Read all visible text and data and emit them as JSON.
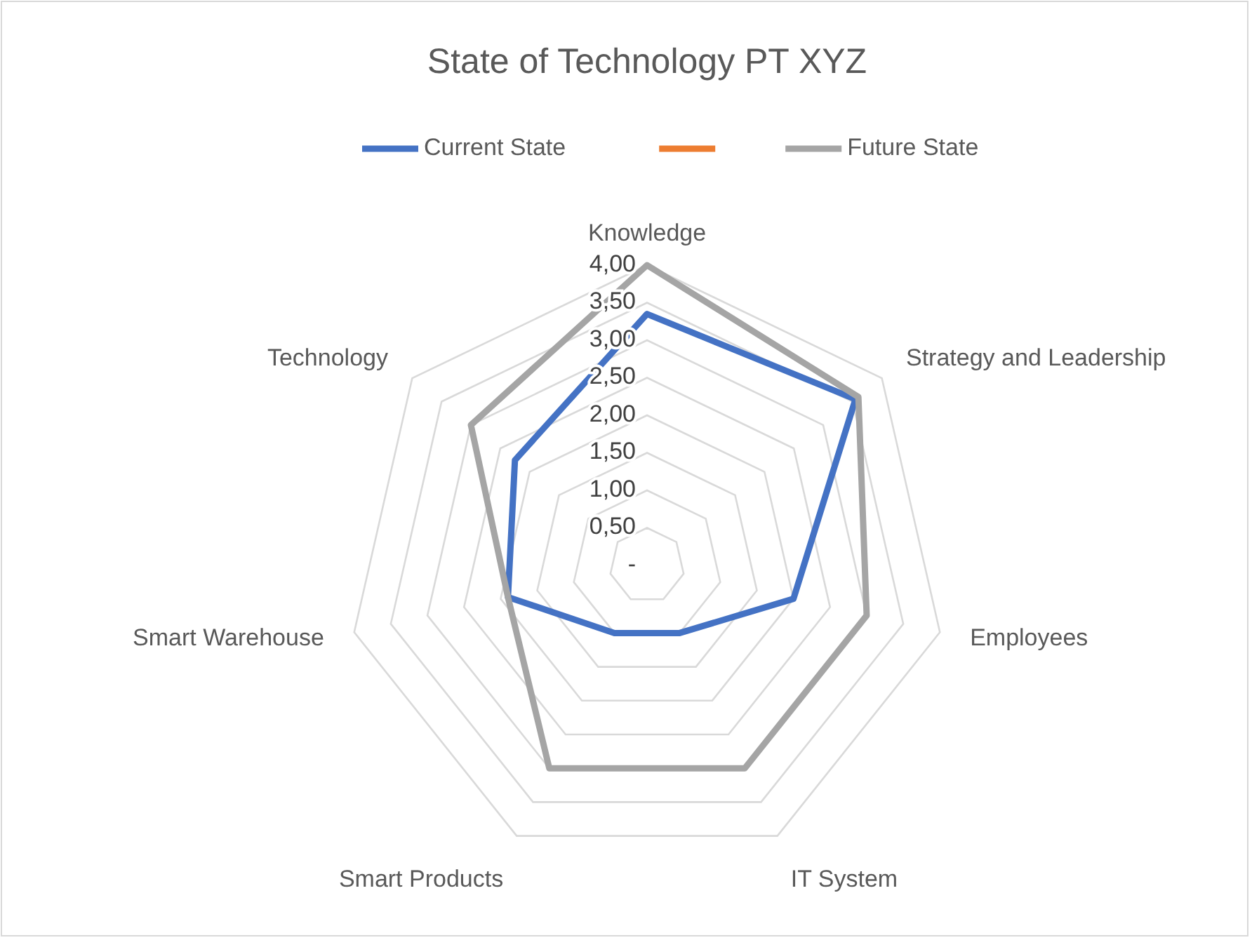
{
  "chart_data": {
    "type": "radar",
    "title": "State of Technology PT XYZ",
    "categories": [
      "Knowledge",
      "Strategy and Leadership",
      "Employees",
      "IT System",
      "Smart Products",
      "Smart Warehouse",
      "Technology"
    ],
    "series": [
      {
        "name": "Current State",
        "color": "#4472c4",
        "values": [
          3.35,
          3.55,
          2.0,
          1.0,
          1.0,
          1.9,
          2.25
        ]
      },
      {
        "name": "Future State",
        "color": "#a5a5a5",
        "values": [
          4.0,
          3.6,
          3.0,
          3.0,
          3.0,
          1.9,
          3.0
        ]
      }
    ],
    "ylim": [
      0,
      4
    ],
    "yticks": [
      {
        "value": 0,
        "label": "-"
      },
      {
        "value": 0.5,
        "label": "0,50"
      },
      {
        "value": 1,
        "label": "1,00"
      },
      {
        "value": 1.5,
        "label": "1,50"
      },
      {
        "value": 2,
        "label": "2,00"
      },
      {
        "value": 2.5,
        "label": "2,50"
      },
      {
        "value": 3,
        "label": "3,00"
      },
      {
        "value": 3.5,
        "label": "3,50"
      },
      {
        "value": 4,
        "label": "4,00"
      }
    ],
    "grid": true,
    "legend": "top"
  }
}
